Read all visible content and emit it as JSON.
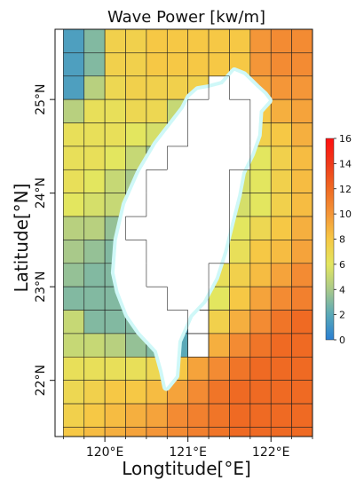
{
  "title": "Wave Power [kw/m]",
  "xlabel": "Longtitude[°E]",
  "ylabel": "Latitude[°N]",
  "x_ticks": [
    {
      "value": 120,
      "label": "120°E"
    },
    {
      "value": 121,
      "label": "121°E"
    },
    {
      "value": 122,
      "label": "122°E"
    }
  ],
  "y_ticks": [
    {
      "value": 22,
      "label": "22°N"
    },
    {
      "value": 23,
      "label": "23°N"
    },
    {
      "value": 24,
      "label": "24°N"
    },
    {
      "value": 25,
      "label": "25°N"
    }
  ],
  "colorbar": {
    "ticks": [
      "0",
      "2",
      "4",
      "6",
      "8",
      "10",
      "12",
      "14",
      "16"
    ],
    "range": [
      0,
      16
    ],
    "colors": [
      "#2a7fd2",
      "#5aa9b8",
      "#a9c98a",
      "#e3e65f",
      "#f6c845",
      "#f49638",
      "#ef6a23",
      "#ef3a1a",
      "#ff1010"
    ]
  },
  "chart_data": {
    "type": "heatmap",
    "title": "Wave Power [kw/m]",
    "xlabel": "Longtitude[°E]",
    "ylabel": "Latitude[°N]",
    "xlim": [
      119.4,
      122.5
    ],
    "ylim": [
      21.4,
      25.75
    ],
    "color_range": [
      0,
      16
    ],
    "grid_cell_deg": 0.25,
    "land_color": "#ffffff",
    "coastal_shelf_color": "#cff8f8",
    "grid_origin": {
      "lon": 119.5,
      "lat": 25.75
    },
    "cells_description": "rows from north (25.75°N) to south (21.25°N), columns from west (119.5°E) to east (122.5°E); null = land",
    "cells": [
      [
        1.5,
        3.0,
        7.5,
        7.5,
        8.0,
        8.0,
        8.0,
        8.0,
        8.0,
        10.0,
        10.5,
        10.5
      ],
      [
        1.5,
        3.0,
        7.5,
        7.5,
        8.0,
        8.0,
        8.0,
        8.0,
        8.0,
        10.0,
        10.5,
        10.5
      ],
      [
        1.5,
        4.5,
        7.0,
        7.5,
        7.5,
        7.5,
        7.5,
        null,
        8.0,
        9.5,
        10.0,
        10.0
      ],
      [
        4.5,
        6.5,
        6.5,
        7.0,
        7.0,
        5.0,
        null,
        null,
        null,
        8.0,
        9.0,
        9.5
      ],
      [
        6.5,
        6.5,
        6.5,
        6.0,
        5.5,
        3.5,
        null,
        null,
        null,
        7.5,
        8.0,
        9.0
      ],
      [
        6.5,
        6.5,
        6.0,
        5.0,
        3.5,
        null,
        null,
        null,
        null,
        6.0,
        7.5,
        8.5
      ],
      [
        6.5,
        6.0,
        5.0,
        4.0,
        null,
        null,
        null,
        null,
        5.5,
        6.0,
        7.5,
        8.5
      ],
      [
        6.0,
        5.5,
        5.0,
        3.5,
        null,
        null,
        null,
        null,
        5.5,
        6.0,
        7.5,
        8.5
      ],
      [
        4.5,
        4.5,
        3.5,
        null,
        null,
        null,
        null,
        null,
        6.0,
        7.0,
        8.0,
        9.0
      ],
      [
        4.0,
        3.5,
        3.0,
        2.5,
        null,
        null,
        null,
        null,
        6.5,
        8.0,
        8.5,
        9.5
      ],
      [
        3.5,
        3.0,
        3.0,
        2.0,
        null,
        null,
        null,
        6.5,
        7.5,
        8.5,
        9.5,
        10.5
      ],
      [
        3.0,
        3.0,
        3.0,
        2.0,
        1.5,
        null,
        null,
        6.0,
        8.0,
        9.5,
        10.5,
        11.0
      ],
      [
        5.0,
        3.0,
        3.0,
        3.0,
        2.5,
        1.5,
        null,
        7.5,
        9.0,
        10.5,
        11.5,
        12.0
      ],
      [
        5.0,
        5.0,
        4.5,
        3.5,
        3.0,
        2.0,
        null,
        9.0,
        10.5,
        11.5,
        12.0,
        12.0
      ],
      [
        6.5,
        6.5,
        6.5,
        6.5,
        7.0,
        8.0,
        9.5,
        10.5,
        11.5,
        12.0,
        12.0,
        12.0
      ],
      [
        7.0,
        7.5,
        8.0,
        8.0,
        8.5,
        9.5,
        10.5,
        11.5,
        12.0,
        12.0,
        12.0,
        12.0
      ],
      [
        7.5,
        8.0,
        8.5,
        9.0,
        9.5,
        10.5,
        11.0,
        11.5,
        12.0,
        12.0,
        12.0,
        12.0
      ],
      [
        8.0,
        8.5,
        9.0,
        9.5,
        10.0,
        10.5,
        11.0,
        11.5,
        12.0,
        12.0,
        12.0,
        12.0
      ]
    ]
  }
}
